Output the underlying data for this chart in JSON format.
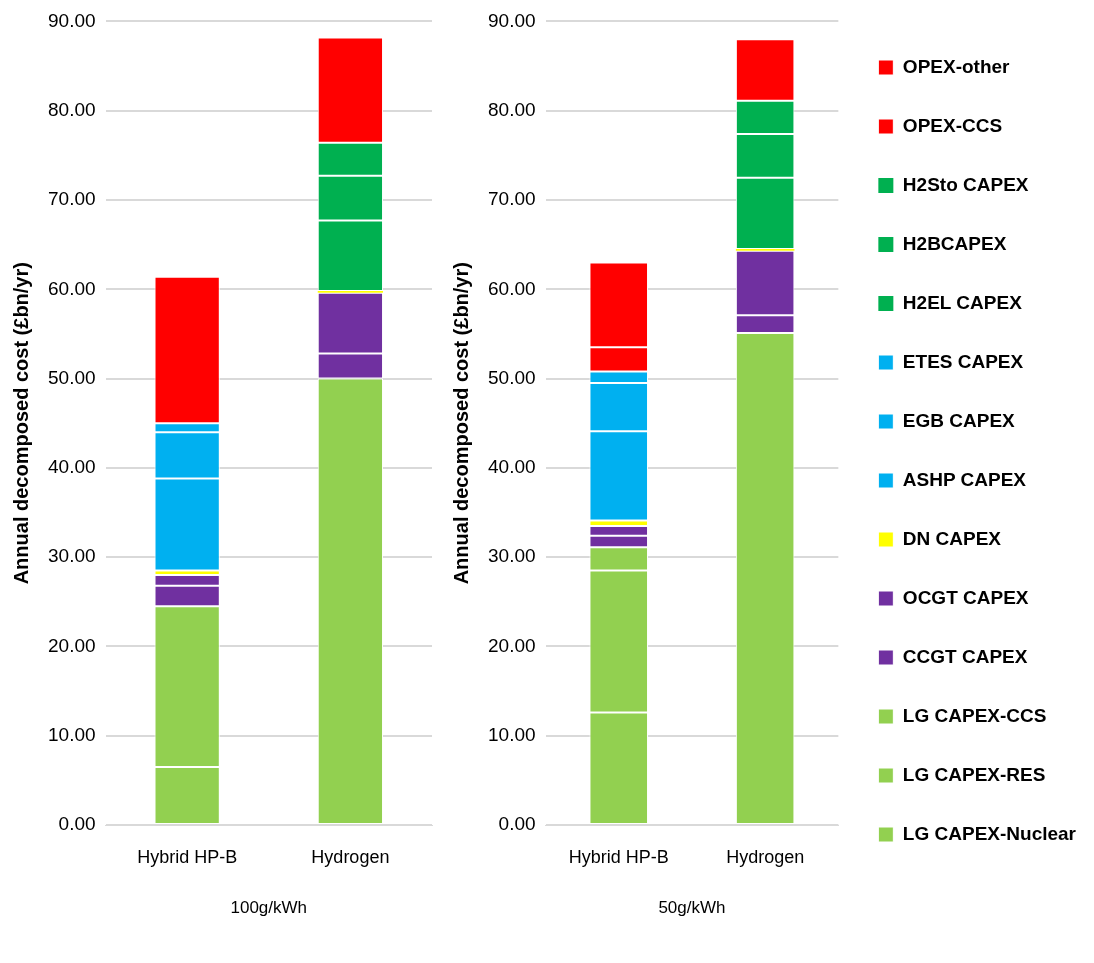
{
  "chart_data": [
    {
      "type": "bar",
      "stacked": true,
      "xlabel": "100g/kWh",
      "ylabel": "Annual decomposed cost (£bn/yr)",
      "categories": [
        "Hybrid HP-B",
        "Hydrogen"
      ],
      "ylim": [
        0,
        90
      ],
      "yticks": [
        {
          "value": 0,
          "label": "0.00"
        },
        {
          "value": 10,
          "label": "10.00"
        },
        {
          "value": 20,
          "label": "20.00"
        },
        {
          "value": 30,
          "label": "30.00"
        },
        {
          "value": 40,
          "label": "40.00"
        },
        {
          "value": 50,
          "label": "50.00"
        },
        {
          "value": 60,
          "label": "60.00"
        },
        {
          "value": 70,
          "label": "70.00"
        },
        {
          "value": 80,
          "label": "80.00"
        },
        {
          "value": 90,
          "label": "90.00"
        }
      ],
      "grid": "y",
      "legend": false,
      "series": [
        {
          "color": "#92d050",
          "values": [
            6.5,
            0
          ]
        },
        {
          "color": "#92d050",
          "values": [
            18.0,
            50.0
          ]
        },
        {
          "color": "#92d050",
          "values": [
            0,
            0
          ]
        },
        {
          "color": "#7030a0",
          "values": [
            2.3,
            2.8
          ]
        },
        {
          "color": "#7030a0",
          "values": [
            1.2,
            6.8
          ]
        },
        {
          "color": "#ffff00",
          "values": [
            0.5,
            0.2
          ]
        },
        {
          "color": "#00b0f0",
          "values": [
            10.3,
            0
          ]
        },
        {
          "color": "#00b0f0",
          "values": [
            5.2,
            0
          ]
        },
        {
          "color": "#00b0f0",
          "values": [
            1.0,
            0
          ]
        },
        {
          "color": "#00b050",
          "values": [
            0,
            7.9
          ]
        },
        {
          "color": "#00b050",
          "values": [
            0,
            5.0
          ]
        },
        {
          "color": "#00b050",
          "values": [
            0,
            3.7
          ]
        },
        {
          "color": "#ff0000",
          "values": [
            0,
            0
          ]
        },
        {
          "color": "#ff0000",
          "values": [
            16.4,
            11.8
          ]
        }
      ]
    },
    {
      "type": "bar",
      "stacked": true,
      "xlabel": "50g/kWh",
      "ylabel": "Annual decomposed cost (£bn/yr)",
      "categories": [
        "Hybrid HP-B",
        "Hydrogen"
      ],
      "ylim": [
        0,
        90
      ],
      "yticks": [
        {
          "value": 0,
          "label": "0.00"
        },
        {
          "value": 10,
          "label": "10.00"
        },
        {
          "value": 20,
          "label": "20.00"
        },
        {
          "value": 30,
          "label": "30.00"
        },
        {
          "value": 40,
          "label": "40.00"
        },
        {
          "value": 50,
          "label": "50.00"
        },
        {
          "value": 60,
          "label": "60.00"
        },
        {
          "value": 70,
          "label": "70.00"
        },
        {
          "value": 80,
          "label": "80.00"
        },
        {
          "value": 90,
          "label": "90.00"
        }
      ],
      "grid": "y",
      "legend": "right",
      "series": [
        {
          "name": "LG CAPEX-Nuclear",
          "color": "#92d050",
          "values": [
            12.6,
            0
          ]
        },
        {
          "name": "LG CAPEX-RES",
          "color": "#92d050",
          "values": [
            15.9,
            55.1
          ]
        },
        {
          "name": "LG CAPEX-CCS",
          "color": "#92d050",
          "values": [
            2.6,
            0
          ]
        },
        {
          "name": "CCGT CAPEX",
          "color": "#7030a0",
          "values": [
            1.3,
            2.0
          ]
        },
        {
          "name": "OCGT CAPEX",
          "color": "#7030a0",
          "values": [
            1.1,
            7.2
          ]
        },
        {
          "name": "DN CAPEX",
          "color": "#ffff00",
          "values": [
            0.6,
            0.2
          ]
        },
        {
          "name": "ASHP CAPEX",
          "color": "#00b0f0",
          "values": [
            10.0,
            0
          ]
        },
        {
          "name": "EGB CAPEX",
          "color": "#00b0f0",
          "values": [
            5.4,
            0
          ]
        },
        {
          "name": "ETES CAPEX",
          "color": "#00b0f0",
          "values": [
            1.3,
            0
          ]
        },
        {
          "name": "H2EL CAPEX",
          "color": "#00b050",
          "values": [
            0,
            8.0
          ]
        },
        {
          "name": "H2BCAPEX",
          "color": "#00b050",
          "values": [
            0,
            4.9
          ]
        },
        {
          "name": "H2Sto CAPEX",
          "color": "#00b050",
          "values": [
            0,
            3.7
          ]
        },
        {
          "name": "OPEX-CCS",
          "color": "#ff0000",
          "values": [
            2.7,
            0
          ]
        },
        {
          "name": "OPEX-other",
          "color": "#ff0000",
          "values": [
            9.5,
            6.9
          ]
        }
      ]
    }
  ]
}
